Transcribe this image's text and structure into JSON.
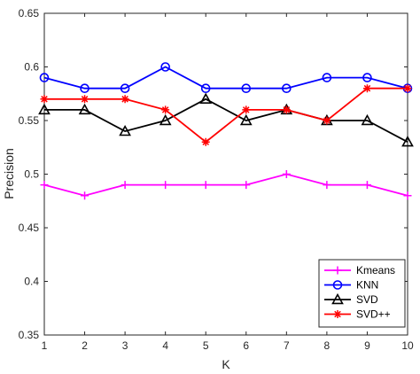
{
  "chart_data": {
    "type": "line",
    "xlabel": "K",
    "ylabel": "Precision",
    "xlim": [
      1,
      10
    ],
    "ylim": [
      0.35,
      0.65
    ],
    "x": [
      1,
      2,
      3,
      4,
      5,
      6,
      7,
      8,
      9,
      10
    ],
    "xticks": [
      "1",
      "2",
      "3",
      "4",
      "5",
      "6",
      "7",
      "8",
      "9",
      "10"
    ],
    "yticks": [
      "0.35",
      "0.4",
      "0.45",
      "0.5",
      "0.55",
      "0.6",
      "0.65"
    ],
    "grid": false,
    "legend_position": "bottom-right",
    "series": [
      {
        "name": "Kmeans",
        "color": "#ff00ff",
        "marker": "plus",
        "values": [
          0.49,
          0.48,
          0.49,
          0.49,
          0.49,
          0.49,
          0.5,
          0.49,
          0.49,
          0.48
        ]
      },
      {
        "name": "KNN",
        "color": "#0000ff",
        "marker": "circle",
        "values": [
          0.59,
          0.58,
          0.58,
          0.6,
          0.58,
          0.58,
          0.58,
          0.59,
          0.59,
          0.58
        ]
      },
      {
        "name": "SVD",
        "color": "#000000",
        "marker": "triangle",
        "values": [
          0.56,
          0.56,
          0.54,
          0.55,
          0.57,
          0.55,
          0.56,
          0.55,
          0.55,
          0.53
        ]
      },
      {
        "name": "SVD++",
        "color": "#ff0000",
        "marker": "asterisk",
        "values": [
          0.57,
          0.57,
          0.57,
          0.56,
          0.53,
          0.56,
          0.56,
          0.55,
          0.58,
          0.58
        ]
      }
    ]
  }
}
